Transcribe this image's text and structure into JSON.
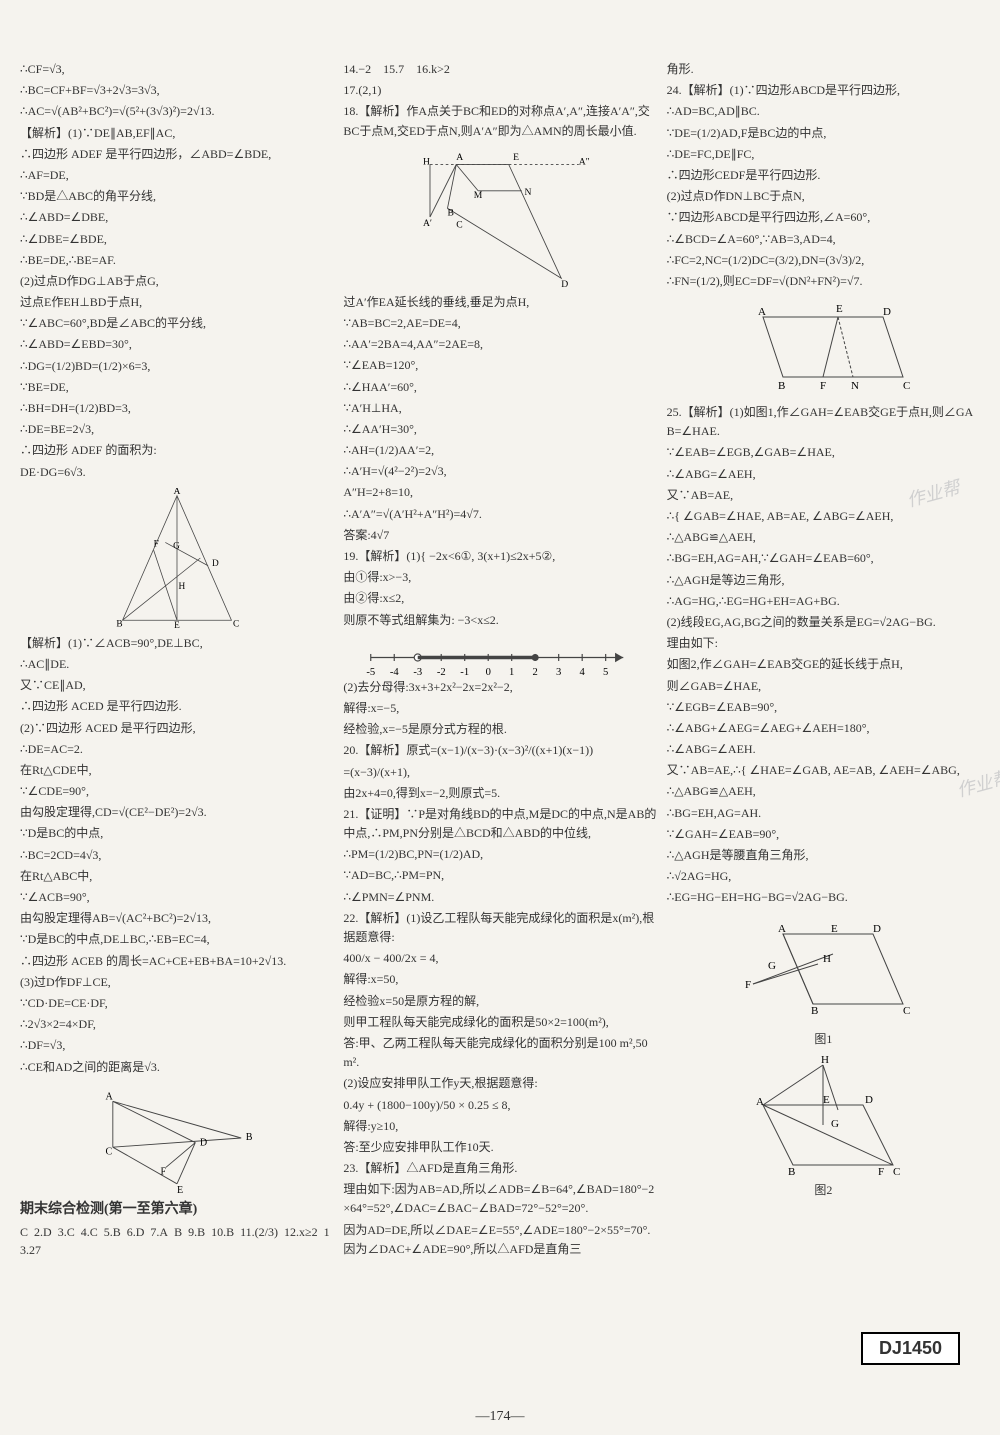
{
  "page_number": "—174—",
  "code_badge": "DJ1450",
  "watermark_text": "作业帮",
  "columns": {
    "col1": [
      "∴CF=√3,",
      "∴BC=CF+BF=√3+2√3=3√3,",
      "∴AC=√(AB²+BC²)=√(5²+(3√3)²)=2√13.",
      "【解析】(1)∵DE∥AB,EF∥AC,",
      "∴四边形 ADEF 是平行四边形，∠ABD=∠BDE,",
      "∴AF=DE,",
      "∵BD是△ABC的角平分线,",
      "∴∠ABD=∠DBE,",
      "∴∠DBE=∠BDE,",
      "∴BE=DE,∴BE=AF.",
      "(2)过点D作DG⊥AB于点G,",
      "过点E作EH⊥BD于点H,",
      "∵∠ABC=60°,BD是∠ABC的平分线,",
      "∴∠ABD=∠EBD=30°,",
      "∴DG=(1/2)BD=(1/2)×6=3,",
      "∵BE=DE,",
      "∴BH=DH=(1/2)BD=3,",
      "∴DE=BE=2√3,",
      "∴四边形 ADEF 的面积为:",
      "DE·DG=6√3."
    ],
    "col1b": [
      "【解析】(1)∵∠ACB=90°,DE⊥BC,",
      "∴AC∥DE.",
      "又∵CE∥AD,",
      "∴四边形 ACED 是平行四边形.",
      "(2)∵四边形 ACED 是平行四边形,",
      "∴DE=AC=2.",
      "在Rt△CDE中,",
      "∵∠CDE=90°,",
      "由勾股定理得,CD=√(CE²−DE²)=2√3.",
      "∵D是BC的中点,",
      "∴BC=2CD=4√3,",
      "在Rt△ABC中,",
      "∵∠ACB=90°,",
      "由勾股定理得AB=√(AC²+BC²)=2√13,",
      "∵D是BC的中点,DE⊥BC,∴EB=EC=4,",
      "∴四边形 ACEB 的周长=AC+CE+EB+BA=10+2√13.",
      "(3)过D作DF⊥CE,",
      "∵CD·DE=CE·DF,",
      "∴2√3×2=4×DF,",
      "∴DF=√3,",
      "∴CE和AD之间的距离是√3."
    ],
    "final_exam_title": "期末综合检测(第一至第六章)",
    "final_answers": [
      "C",
      "2.D",
      "3.C",
      "4.C",
      "5.B",
      "6.D",
      "7.A",
      "B",
      "9.B",
      "10.B",
      "11.(2/3)",
      "12.x≥2",
      "13.27"
    ],
    "col2": [
      "14.−2　15.7　16.k>2",
      "17.(2,1)",
      "18.【解析】作A点关于BC和ED的对称点A′,A″,连接A′A″,交BC于点M,交ED于点N,则A′A″即为△AMN的周长最小值."
    ],
    "col2b": [
      "过A′作EA延长线的垂线,垂足为点H,",
      "∵AB=BC=2,AE=DE=4,",
      "∴AA′=2BA=4,AA″=2AE=8,",
      "∵∠EAB=120°,",
      "∴∠HAA′=60°,",
      "∵A′H⊥HA,",
      "∴∠AA′H=30°,",
      "∴AH=(1/2)AA′=2,",
      "∴A′H=√(4²−2²)=2√3,",
      "A″H=2+8=10,",
      "∴A′A″=√(A′H²+A″H²)=4√7.",
      "答案:4√7",
      "19.【解析】(1){ −2x<6①, 3(x+1)≤2x+5②,",
      "由①得:x>−3,",
      "由②得:x≤2,",
      "则原不等式组解集为: −3<x≤2."
    ],
    "col2c": [
      "(2)去分母得:3x+3+2x²−2x=2x²−2,",
      "解得:x=−5,",
      "经检验,x=−5是原分式方程的根.",
      "20.【解析】原式=(x−1)/(x−3)·(x−3)²/((x+1)(x−1))",
      "=(x−3)/(x+1),",
      "由2x+4=0,得到x=−2,则原式=5.",
      "21.【证明】∵P是对角线BD的中点,M是DC的中点,N是AB的中点,∴PM,PN分别是△BCD和△ABD的中位线,",
      "∴PM=(1/2)BC,PN=(1/2)AD,",
      "∵AD=BC,∴PM=PN,",
      "∴∠PMN=∠PNM.",
      "22.【解析】(1)设乙工程队每天能完成绿化的面积是x(m²),根据题意得:",
      "400/x − 400/2x = 4,",
      "解得:x=50,",
      "经检验x=50是原方程的解,",
      "则甲工程队每天能完成绿化的面积是50×2=100(m²),",
      "答:甲、乙两工程队每天能完成绿化的面积分别是100 m²,50 m².",
      "(2)设应安排甲队工作y天,根据题意得:",
      "0.4y + (1800−100y)/50 × 0.25 ≤ 8,",
      "解得:y≥10,",
      "答:至少应安排甲队工作10天.",
      "23.【解析】△AFD是直角三角形.",
      "理由如下:因为AB=AD,所以∠ADB=∠B=64°,∠BAD=180°−2×64°=52°,∠DAC=∠BAC−∠BAD=72°−52°=20°.",
      "因为AD=DE,所以∠DAE=∠E=55°,∠ADE=180°−2×55°=70°.因为∠DAC+∠ADE=90°,所以△AFD是直角三"
    ],
    "col3": [
      "角形.",
      "24.【解析】(1)∵四边形ABCD是平行四边形,",
      "∴AD=BC,AD∥BC.",
      "∵DE=(1/2)AD,F是BC边的中点,",
      "∴DE=FC,DE∥FC,",
      "∴四边形CEDF是平行四边形.",
      "(2)过点D作DN⊥BC于点N,",
      "∵四边形ABCD是平行四边形,∠A=60°,",
      "∴∠BCD=∠A=60°,∵AB=3,AD=4,",
      "∴FC=2,NC=(1/2)DC=(3/2),DN=(3√3)/2,",
      "∴FN=(1/2),则EC=DF=√(DN²+FN²)=√7."
    ],
    "col3b": [
      "25.【解析】(1)如图1,作∠GAH=∠EAB交GE于点H,则∠GAB=∠HAE.",
      "∵∠EAB=∠EGB,∠GAB=∠HAE,",
      "∴∠ABG=∠AEH,",
      "又∵AB=AE,",
      "∴{ ∠GAB=∠HAE, AB=AE, ∠ABG=∠AEH,",
      "∴△ABG≌△AEH,",
      "∴BG=EH,AG=AH,∵∠GAH=∠EAB=60°,",
      "∴△AGH是等边三角形,",
      "∴AG=HG,∴EG=HG+EH=AG+BG.",
      "(2)线段EG,AG,BG之间的数量关系是EG=√2AG−BG.",
      "理由如下:",
      "如图2,作∠GAH=∠EAB交GE的延长线于点H,",
      "则∠GAB=∠HAE,",
      "∵∠EGB=∠EAB=90°,",
      "∴∠ABG+∠AEG=∠AEG+∠AEH=180°,",
      "∴∠ABG=∠AEH.",
      "又∵AB=AE,∴{ ∠HAE=∠GAB, AE=AB, ∠AEH=∠ABG,",
      "∴△ABG≌△AEH,",
      "∴BG=EH,AG=AH.",
      "∵∠GAH=∠EAB=90°,",
      "∴△AGH是等腰直角三角形,",
      "∴√2AG=HG,",
      "∴EG=HG−EH=HG−BG=√2AG−BG."
    ],
    "fig_labels": {
      "fig1": "图1",
      "fig2": "图2"
    }
  },
  "numberline": {
    "ticks": [
      -5,
      -4,
      -3,
      -2,
      -1,
      0,
      1,
      2,
      3,
      4,
      5
    ],
    "open": -3,
    "closed": 2
  },
  "colors": {
    "bg": "#f5f3ee",
    "text": "#333333",
    "line": "#444444"
  }
}
